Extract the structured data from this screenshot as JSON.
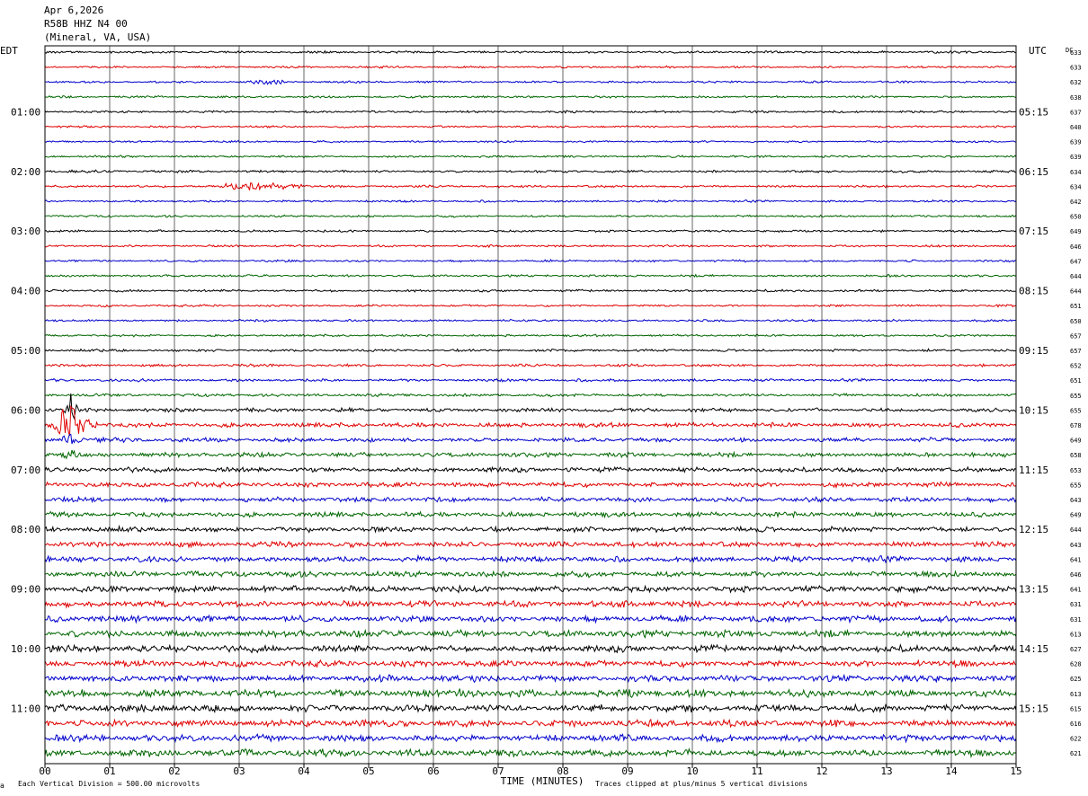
{
  "header": {
    "line1": "Apr 6,2026",
    "line2": "R58B HHZ N4 00",
    "line3": "(Mineral, VA, USA)"
  },
  "left_tz": "EDT",
  "right_tz": "UTC",
  "dc_header": "DC",
  "footer": {
    "scale_note": "Each Vertical Division =  500.00 microvolts",
    "clip_note": "Traces clipped at plus/minus 5 vertical divisions",
    "mark": "a"
  },
  "colors": {
    "trace_cycle": [
      "#000000",
      "#e00000",
      "#0000cc",
      "#006600"
    ],
    "grid": "#000000",
    "background": "#ffffff"
  },
  "chart_data": {
    "type": "line",
    "subtype": "helicorder",
    "xlabel": "TIME (MINUTES)",
    "xlim": [
      0,
      15
    ],
    "x_tick_labels": [
      "00",
      "01",
      "02",
      "03",
      "04",
      "05",
      "06",
      "07",
      "08",
      "09",
      "10",
      "11",
      "12",
      "13",
      "14",
      "15"
    ],
    "rows_per_hour": 4,
    "row_minutes": 15,
    "left_hour_labels": [
      "01:00",
      "02:00",
      "03:00",
      "04:00",
      "05:00",
      "06:00",
      "07:00",
      "08:00",
      "09:00",
      "10:00",
      "11:00"
    ],
    "right_hour_labels": [
      "05:15",
      "06:15",
      "07:15",
      "08:15",
      "09:15",
      "10:15",
      "11:15",
      "12:15",
      "13:15",
      "14:15",
      "15:15"
    ],
    "label_first_row": 4,
    "row_dc_offsets": [
      633,
      633,
      632,
      638,
      637,
      640,
      639,
      639,
      634,
      634,
      642,
      650,
      649,
      646,
      647,
      644,
      644,
      651,
      650,
      657,
      657,
      652,
      651,
      655,
      655,
      678,
      649,
      658,
      653,
      655,
      643,
      649,
      644,
      643,
      641,
      646,
      641,
      631,
      631,
      613,
      627,
      628,
      625,
      613,
      615,
      616,
      622,
      621
    ],
    "row_amplitude_level": [
      0.32,
      0.28,
      0.28,
      0.3,
      0.3,
      0.28,
      0.28,
      0.3,
      0.34,
      0.32,
      0.3,
      0.3,
      0.3,
      0.3,
      0.3,
      0.32,
      0.32,
      0.3,
      0.3,
      0.3,
      0.36,
      0.36,
      0.4,
      0.42,
      0.55,
      0.62,
      0.6,
      0.62,
      0.7,
      0.7,
      0.65,
      0.68,
      0.72,
      0.75,
      0.8,
      0.8,
      0.85,
      0.85,
      0.9,
      0.95,
      0.95,
      0.9,
      0.9,
      1.0,
      1.0,
      0.95,
      0.95,
      1.0
    ],
    "events": [
      {
        "row": 25,
        "start_minute": 0.1,
        "end_minute": 0.8,
        "peak_minute": 0.4,
        "peak_divisions": 5,
        "note": "clipped local event"
      },
      {
        "row": 24,
        "start_minute": 0.3,
        "end_minute": 0.6,
        "peak_minute": 0.4,
        "peak_divisions": 3
      },
      {
        "row": 26,
        "start_minute": 0.2,
        "end_minute": 0.6,
        "peak_minute": 0.4,
        "peak_divisions": 2
      },
      {
        "row": 27,
        "start_minute": 0.2,
        "end_minute": 0.6,
        "peak_minute": 0.4,
        "peak_divisions": 1.5
      },
      {
        "row": 9,
        "start_minute": 2.5,
        "end_minute": 4.7,
        "peak_minute": 3.3,
        "peak_divisions": 1.0
      },
      {
        "row": 2,
        "start_minute": 2.9,
        "end_minute": 3.8,
        "peak_minute": 3.4,
        "peak_divisions": 0.8
      },
      {
        "row": 43,
        "start_minute": 6.0,
        "end_minute": 7.0,
        "peak_minute": 6.5,
        "peak_divisions": 1.2
      },
      {
        "row": 41,
        "start_minute": 13.4,
        "end_minute": 13.7,
        "peak_minute": 13.55,
        "peak_divisions": 1.2
      }
    ]
  }
}
